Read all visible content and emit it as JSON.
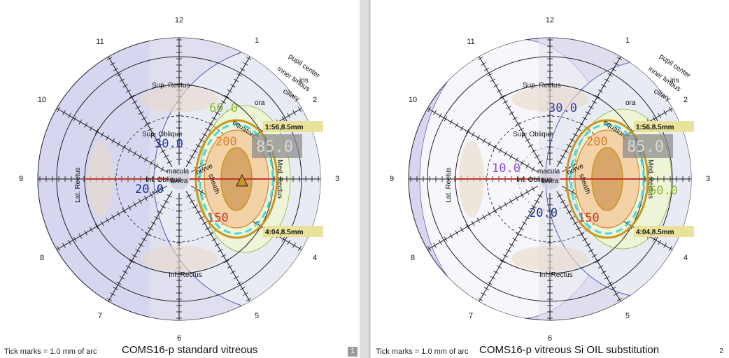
{
  "panels": [
    {
      "footer": {
        "tick_note": "Tick marks = 1.0 mm of arc",
        "title": "COMS16-p standard vitreous",
        "page": "1"
      },
      "clock": [
        "12",
        "1",
        "2",
        "3",
        "4",
        "5",
        "6",
        "7",
        "8",
        "9",
        "10",
        "11"
      ],
      "labels": {
        "pupil_center": "pupil center",
        "inner_limbus": "inner limbus",
        "iris": "iris",
        "ciliary": "ciliary",
        "ora": "ora",
        "equator": "equator",
        "sup_rectus": "Sup. Rectus",
        "sup_oblique": "Sup. Oblique",
        "lat_rectus": "Lat. Rectus",
        "inf_oblique": "Inf. Oblique",
        "inf_rectus": "Inf. Rectus",
        "macula": "macula",
        "fovea": "fovea",
        "nerve": "nerve",
        "sheath": "sheath",
        "med_rectus": "Med. Rectus"
      },
      "markers": {
        "upper": "1:56,8.5mm",
        "lower": "4:04,8.5mm"
      },
      "isodose": {
        "a": "60.0",
        "b": "200",
        "c": "85.0",
        "d": "30.0",
        "e": "20.0",
        "f": "150"
      }
    },
    {
      "footer": {
        "tick_note": "Tick marks = 1.0 mm of arc",
        "title": "COMS16-p vitreous Si OIL substitution",
        "page": "2"
      },
      "clock": [
        "12",
        "1",
        "2",
        "3",
        "4",
        "5",
        "6",
        "7",
        "8",
        "9",
        "10",
        "11"
      ],
      "labels": {
        "pupil_center": "pupil center",
        "inner_limbus": "inner limbus",
        "iris": "iris",
        "ciliary": "ciliary",
        "ora": "ora",
        "equator": "equator",
        "sup_rectus": "Sup. Rectus",
        "sup_oblique": "Sup. Oblique",
        "lat_rectus": "Lat. Rectus",
        "inf_oblique": "Inf. Oblique",
        "inf_rectus": "Inf. Rectus",
        "macula": "macula",
        "fovea": "fovea",
        "nerve": "nerve",
        "sheath": "sheath",
        "med_rectus": "Med. Rectus"
      },
      "markers": {
        "upper": "1:56,8.5mm",
        "lower": "4:04,8.5mm"
      },
      "isodose": {
        "a": "30.0",
        "b": "200",
        "c": "85.0",
        "d": "10.0",
        "e": "20.0",
        "f": "150",
        "g": "60.0"
      }
    }
  ],
  "colors": {
    "outer_band": "#d6d6f0",
    "inner_disc": "#f2f2fb",
    "grid": "#000000",
    "meridian_red": "#c0392b",
    "plaque_gold": "#c8961e",
    "iso_60": "#8fba2a",
    "iso_200": "#d9822b",
    "iso_85": "#c8c8c8",
    "iso_30": "#2a3fb0",
    "iso_20": "#1a2f8a",
    "iso_150": "#c0392b",
    "iso_10": "#8a4fd0",
    "cyan": "#46d8e0"
  }
}
